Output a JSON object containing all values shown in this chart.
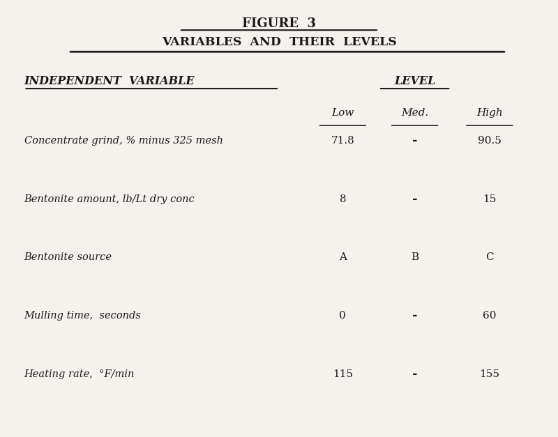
{
  "title1": "FIGURE  3",
  "title2": "VARIABLES  AND  THEIR  LEVELS",
  "col_header_left": "INDEPENDENT  VARIABLE",
  "col_header_right": "LEVEL",
  "level_labels": [
    "Low",
    "Med.",
    "High"
  ],
  "rows": [
    {
      "variable": "Concentrate grind, % minus 325 mesh",
      "low": "71.8",
      "med": "•",
      "high": "90.5"
    },
    {
      "variable": "Bentonite amount, lb/Lt dry conc",
      "low": "8",
      "med": "•",
      "high": "15"
    },
    {
      "variable": "Bentonite source",
      "low": "A",
      "med": "B",
      "high": "C"
    },
    {
      "variable": "Mulling time,  seconds",
      "low": "0",
      "med": "•",
      "high": "60"
    },
    {
      "variable": "Heating rate,  °F/min",
      "low": "115",
      "med": "•",
      "high": "155"
    }
  ],
  "bg_color": "#f5f2ee",
  "text_color": "#1a1a1a",
  "font_family": "serif"
}
